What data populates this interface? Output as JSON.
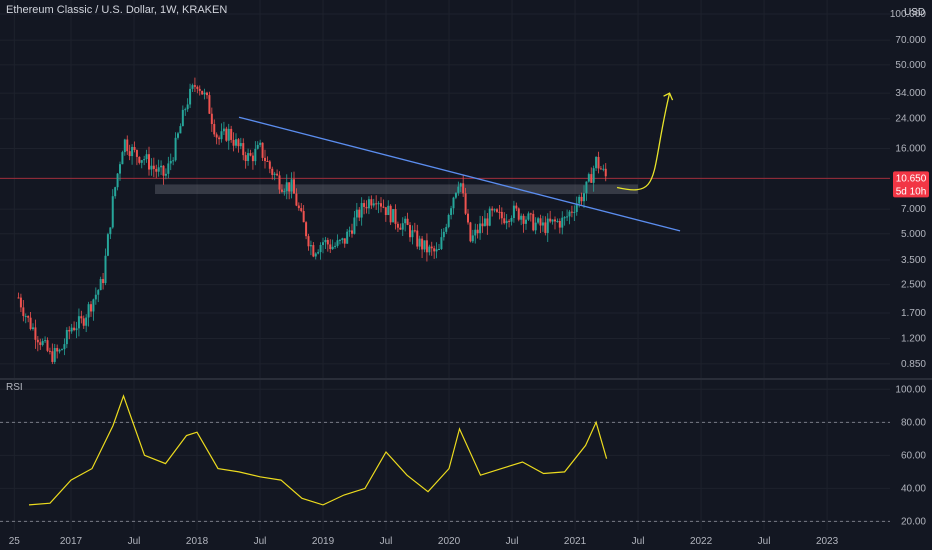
{
  "header": {
    "title": "Ethereum Classic / U.S. Dollar, 1W, KRAKEN",
    "currency": "USD"
  },
  "price_badge": {
    "value": "10.650",
    "countdown": "5d 10h",
    "color": "#f23645"
  },
  "rsi_label": "RSI",
  "chart_data": [
    {
      "type": "candlestick",
      "title": "Ethereum Classic / U.S. Dollar, 1W, KRAKEN",
      "y_scale": "log",
      "ylim": [
        0.72,
        100
      ],
      "y_ticks": [
        "100.000",
        "70.000",
        "50.000",
        "34.000",
        "24.000",
        "16.000",
        "10.650",
        "7.000",
        "5.000",
        "3.500",
        "2.500",
        "1.700",
        "1.200",
        "0.850"
      ],
      "x_ticks": [
        "25",
        "2017",
        "Jul",
        "2018",
        "Jul",
        "2019",
        "Jul",
        "2020",
        "Jul",
        "2021",
        "Jul",
        "2022",
        "Jul",
        "2023"
      ],
      "price_path": [
        [
          "2016-08",
          2.1
        ],
        [
          "2016-09",
          1.5
        ],
        [
          "2016-10",
          1.2
        ],
        [
          "2016-11",
          0.95
        ],
        [
          "2016-12",
          1.0
        ],
        [
          "2017-01",
          1.4
        ],
        [
          "2017-02",
          1.5
        ],
        [
          "2017-03",
          2.0
        ],
        [
          "2017-04",
          2.6
        ],
        [
          "2017-05",
          8.0
        ],
        [
          "2017-06",
          18.0
        ],
        [
          "2017-07",
          15.0
        ],
        [
          "2017-08",
          14.0
        ],
        [
          "2017-09",
          12.0
        ],
        [
          "2017-10",
          11.0
        ],
        [
          "2017-11",
          17.0
        ],
        [
          "2017-12",
          30.0
        ],
        [
          "2018-01",
          40.0
        ],
        [
          "2018-02",
          30.0
        ],
        [
          "2018-03",
          18.0
        ],
        [
          "2018-04",
          20.0
        ],
        [
          "2018-05",
          16.0
        ],
        [
          "2018-06",
          14.0
        ],
        [
          "2018-07",
          16.0
        ],
        [
          "2018-08",
          12.0
        ],
        [
          "2018-09",
          10.0
        ],
        [
          "2018-10",
          9.5
        ],
        [
          "2018-11",
          6.0
        ],
        [
          "2018-12",
          4.0
        ],
        [
          "2019-01",
          4.5
        ],
        [
          "2019-02",
          4.2
        ],
        [
          "2019-03",
          4.5
        ],
        [
          "2019-04",
          6.0
        ],
        [
          "2019-05",
          7.5
        ],
        [
          "2019-06",
          8.5
        ],
        [
          "2019-07",
          7.0
        ],
        [
          "2019-08",
          6.0
        ],
        [
          "2019-09",
          5.5
        ],
        [
          "2019-10",
          4.5
        ],
        [
          "2019-11",
          4.0
        ],
        [
          "2019-12",
          3.8
        ],
        [
          "2020-01",
          7.0
        ],
        [
          "2020-02",
          11.0
        ],
        [
          "2020-03",
          4.5
        ],
        [
          "2020-04",
          5.5
        ],
        [
          "2020-05",
          6.5
        ],
        [
          "2020-06",
          6.2
        ],
        [
          "2020-07",
          6.8
        ],
        [
          "2020-08",
          6.5
        ],
        [
          "2020-09",
          5.8
        ],
        [
          "2020-10",
          5.5
        ],
        [
          "2020-11",
          5.8
        ],
        [
          "2020-12",
          6.0
        ],
        [
          "2021-01",
          7.5
        ],
        [
          "2021-02",
          9.0
        ],
        [
          "2021-03",
          13.5
        ],
        [
          "2021-04",
          10.65
        ]
      ],
      "support_zone": {
        "low": 8.6,
        "high": 9.8,
        "from": "2017-09",
        "to": "2021-07"
      },
      "trendline": {
        "from": [
          "2018-05",
          24.5
        ],
        "to": [
          "2021-11",
          5.2
        ],
        "color": "#5b8def"
      },
      "forecast_arrow": {
        "from": [
          "2021-05",
          9.4
        ],
        "to": [
          "2021-10",
          34
        ],
        "color": "#e8e42a"
      },
      "last_price": 10.65
    },
    {
      "type": "line",
      "title": "RSI",
      "ylim": [
        16,
        102
      ],
      "y_ticks": [
        "100.00",
        "80.00",
        "60.00",
        "40.00",
        "20.00"
      ],
      "guides": [
        80,
        20
      ],
      "color": "#ecdb1e",
      "x": [
        "2016-09",
        "2016-11",
        "2017-01",
        "2017-03",
        "2017-05",
        "2017-06",
        "2017-08",
        "2017-10",
        "2017-12",
        "2018-01",
        "2018-03",
        "2018-05",
        "2018-07",
        "2018-09",
        "2018-11",
        "2019-01",
        "2019-03",
        "2019-05",
        "2019-07",
        "2019-09",
        "2019-11",
        "2020-01",
        "2020-02",
        "2020-04",
        "2020-06",
        "2020-08",
        "2020-10",
        "2020-12",
        "2021-02",
        "2021-03",
        "2021-04"
      ],
      "values": [
        30,
        31,
        45,
        52,
        78,
        96,
        60,
        55,
        72,
        74,
        52,
        50,
        47,
        45,
        34,
        30,
        36,
        40,
        62,
        48,
        38,
        52,
        76,
        48,
        52,
        56,
        49,
        50,
        66,
        80,
        58
      ]
    }
  ]
}
